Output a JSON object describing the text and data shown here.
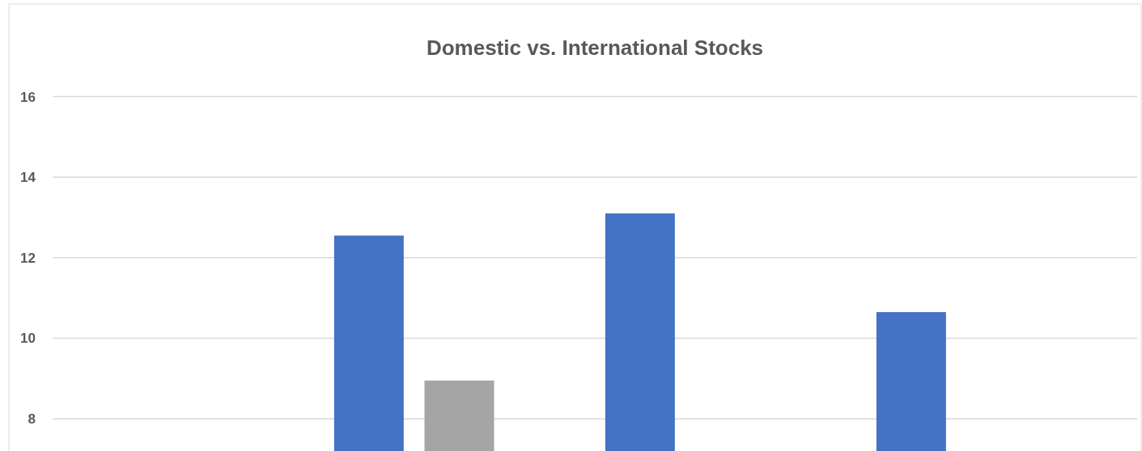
{
  "chart_data": {
    "type": "bar",
    "title": "Domestic vs. International Stocks",
    "categories": [
      null,
      null,
      null,
      null
    ],
    "series": [
      {
        "color": "#4472c4",
        "values": [
          null,
          12.55,
          13.1,
          10.65
        ]
      },
      {
        "color": "#a5a5a5",
        "values": [
          null,
          8.95,
          null,
          null
        ]
      }
    ],
    "ylim": [
      7.2,
      18.3
    ],
    "yticks": [
      8,
      10,
      12,
      14,
      16
    ],
    "grid": "y"
  }
}
